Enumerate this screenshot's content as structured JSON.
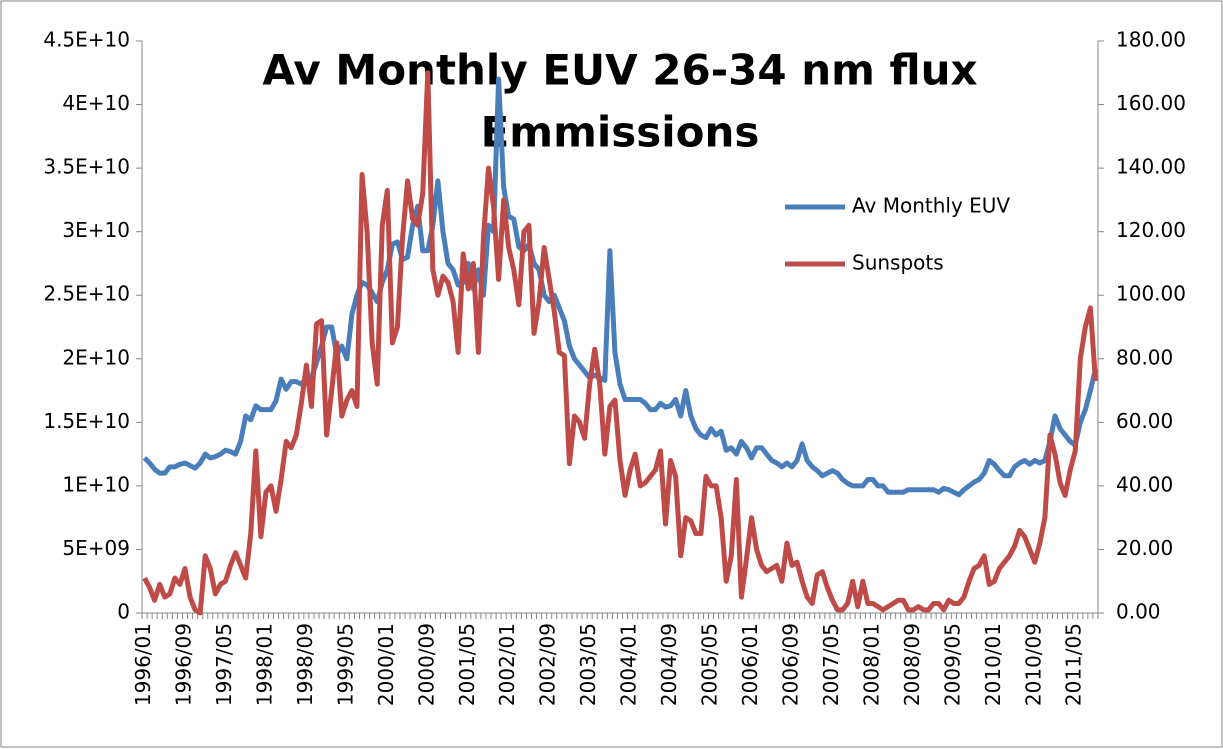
{
  "chart_data": {
    "type": "line",
    "title": [
      "Av Monthly EUV 26-34 nm flux",
      "Emmissions"
    ],
    "categories": [
      "1996/01",
      null,
      null,
      null,
      null,
      null,
      null,
      null,
      "1996/09",
      null,
      null,
      null,
      null,
      null,
      null,
      null,
      "1997/05",
      null,
      null,
      null,
      null,
      null,
      null,
      null,
      "1998/01",
      null,
      null,
      null,
      null,
      null,
      null,
      null,
      "1998/09",
      null,
      null,
      null,
      null,
      null,
      null,
      null,
      "1999/05",
      null,
      null,
      null,
      null,
      null,
      null,
      null,
      "2000/01",
      null,
      null,
      null,
      null,
      null,
      null,
      null,
      "2000/09",
      null,
      null,
      null,
      null,
      null,
      null,
      null,
      "2001/05",
      null,
      null,
      null,
      null,
      null,
      null,
      null,
      "2002/01",
      null,
      null,
      null,
      null,
      null,
      null,
      null,
      "2002/09",
      null,
      null,
      null,
      null,
      null,
      null,
      null,
      "2003/05",
      null,
      null,
      null,
      null,
      null,
      null,
      null,
      "2004/01",
      null,
      null,
      null,
      null,
      null,
      null,
      null,
      "2004/09",
      null,
      null,
      null,
      null,
      null,
      null,
      null,
      "2005/05",
      null,
      null,
      null,
      null,
      null,
      null,
      null,
      "2006/01",
      null,
      null,
      null,
      null,
      null,
      null,
      null,
      "2006/09",
      null,
      null,
      null,
      null,
      null,
      null,
      null,
      "2007/05",
      null,
      null,
      null,
      null,
      null,
      null,
      null,
      "2008/01",
      null,
      null,
      null,
      null,
      null,
      null,
      null,
      "2008/09",
      null,
      null,
      null,
      null,
      null,
      null,
      null,
      "2009/05",
      null,
      null,
      null,
      null,
      null,
      null,
      null,
      "2010/01",
      null,
      null,
      null,
      null,
      null,
      null,
      null,
      "2010/09",
      null,
      null,
      null,
      null,
      null,
      null,
      null,
      "2011/05",
      null,
      null,
      null,
      null
    ],
    "series": [
      {
        "name": "Av Monthly EUV",
        "color": "#4a7ebb",
        "values": [
          12200000000.0,
          11800000000.0,
          11300000000.0,
          11000000000.0,
          11000000000.0,
          11500000000.0,
          11500000000.0,
          11700000000.0,
          11800000000.0,
          11600000000.0,
          11400000000.0,
          11800000000.0,
          12500000000.0,
          12200000000.0,
          12300000000.0,
          12500000000.0,
          12800000000.0,
          12700000000.0,
          12500000000.0,
          13500000000.0,
          15500000000.0,
          15200000000.0,
          16300000000.0,
          16000000000.0,
          16000000000.0,
          16000000000.0,
          16700000000.0,
          18400000000.0,
          17600000000.0,
          18200000000.0,
          18200000000.0,
          18000000000.0,
          18500000000.0,
          18500000000.0,
          19700000000.0,
          21000000000.0,
          22500000000.0,
          22500000000.0,
          20300000000.0,
          21000000000.0,
          20000000000.0,
          23500000000.0,
          25000000000.0,
          26000000000.0,
          25800000000.0,
          25200000000.0,
          24500000000.0,
          26000000000.0,
          27000000000.0,
          29000000000.0,
          29200000000.0,
          27800000000.0,
          28000000000.0,
          30500000000.0,
          32000000000.0,
          28500000000.0,
          28500000000.0,
          30500000000.0,
          34000000000.0,
          30000000000.0,
          27500000000.0,
          27000000000.0,
          25800000000.0,
          26000000000.0,
          27500000000.0,
          25500000000.0,
          27000000000.0,
          25000000000.0,
          30500000000.0,
          30000000000.0,
          42000000000.0,
          33500000000.0,
          31200000000.0,
          31000000000.0,
          28800000000.0,
          28500000000.0,
          29000000000.0,
          27500000000.0,
          27000000000.0,
          25000000000.0,
          24500000000.0,
          25000000000.0,
          24000000000.0,
          23000000000.0,
          21000000000.0,
          20000000000.0,
          19500000000.0,
          19000000000.0,
          18500000000.0,
          18700000000.0,
          18500000000.0,
          18300000000.0,
          28500000000.0,
          20500000000.0,
          18000000000.0,
          16800000000.0,
          16800000000.0,
          16800000000.0,
          16800000000.0,
          16500000000.0,
          16000000000.0,
          16000000000.0,
          16500000000.0,
          16200000000.0,
          16300000000.0,
          16800000000.0,
          15500000000.0,
          17500000000.0,
          15500000000.0,
          14500000000.0,
          14000000000.0,
          13800000000.0,
          14500000000.0,
          14000000000.0,
          14300000000.0,
          12800000000.0,
          13000000000.0,
          12500000000.0,
          13500000000.0,
          13000000000.0,
          12200000000.0,
          13000000000.0,
          13000000000.0,
          12500000000.0,
          12000000000.0,
          11800000000.0,
          11500000000.0,
          11800000000.0,
          11500000000.0,
          12000000000.0,
          13300000000.0,
          12000000000.0,
          11500000000.0,
          11200000000.0,
          10800000000.0,
          11000000000.0,
          11200000000.0,
          11000000000.0,
          10500000000.0,
          10200000000.0,
          10000000000.0,
          10000000000.0,
          10000000000.0,
          10500000000.0,
          10500000000.0,
          10000000000.0,
          10000000000.0,
          9500000000.0,
          9500000000.0,
          9500000000.0,
          9500000000.0,
          9700000000.0,
          9700000000.0,
          9700000000.0,
          9700000000.0,
          9700000000.0,
          9700000000.0,
          9500000000.0,
          9800000000.0,
          9700000000.0,
          9500000000.0,
          9300000000.0,
          9700000000.0,
          10000000000.0,
          10300000000.0,
          10500000000.0,
          11000000000.0,
          12000000000.0,
          11700000000.0,
          11200000000.0,
          10800000000.0,
          10800000000.0,
          11500000000.0,
          11800000000.0,
          12000000000.0,
          11700000000.0,
          12000000000.0,
          11800000000.0,
          12000000000.0,
          13500000000.0,
          15500000000.0,
          14500000000.0,
          14000000000.0,
          13500000000.0,
          13200000000.0,
          15000000000.0,
          16000000000.0,
          17500000000.0,
          19200000000.0
        ]
      },
      {
        "name": "Sunspots",
        "color": "#be4b48",
        "axis": "y2",
        "values": [
          11,
          8,
          4,
          9,
          5,
          6,
          11,
          9,
          14,
          5,
          1,
          0,
          18,
          14,
          6,
          9,
          10,
          15,
          19,
          15,
          11,
          25,
          51,
          24,
          38,
          40,
          32,
          42,
          54,
          52,
          56,
          66,
          78,
          65,
          91,
          92,
          56,
          70,
          85,
          62,
          67,
          70,
          65,
          138,
          120,
          85,
          72,
          122,
          133,
          85,
          90,
          118,
          136,
          124,
          122,
          132,
          170,
          108,
          100,
          106,
          104,
          98,
          82,
          113,
          102,
          110,
          82,
          118,
          140,
          128,
          105,
          130,
          115,
          108,
          97,
          120,
          122,
          88,
          98,
          115,
          105,
          95,
          82,
          81,
          47,
          62,
          60,
          55,
          72,
          83,
          72,
          50,
          65,
          67,
          48,
          37,
          45,
          50,
          40,
          41,
          43,
          45,
          51,
          28,
          48,
          43,
          18,
          30,
          29,
          25,
          25,
          43,
          40,
          40,
          30,
          10,
          18,
          42,
          5,
          17,
          30,
          20,
          15,
          13,
          14,
          15,
          10,
          22,
          15,
          16,
          10,
          5,
          3,
          12,
          13,
          8,
          4,
          1,
          1,
          3,
          10,
          2,
          10,
          3,
          3,
          2,
          1,
          2,
          3,
          4,
          4,
          1,
          1,
          2,
          1,
          1,
          3,
          3,
          1,
          4,
          3,
          3,
          5,
          10,
          14,
          15,
          18,
          9,
          10,
          14,
          16,
          18,
          21,
          26,
          24,
          20,
          16,
          22,
          30,
          56,
          50,
          41,
          37,
          45,
          51,
          80,
          90,
          96,
          73
        ]
      }
    ],
    "ylim": [
      0,
      45000000000
    ],
    "yticks": [
      0,
      {
        "value": 5000000000,
        "label": "5E+09"
      },
      {
        "value": 10000000000,
        "label": "1E+10"
      },
      {
        "value": 15000000000,
        "label": "1.5E+10"
      },
      {
        "value": 20000000000,
        "label": "2E+10"
      },
      {
        "value": 25000000000,
        "label": "2.5E+10"
      },
      {
        "value": 30000000000,
        "label": "3E+10"
      },
      {
        "value": 35000000000,
        "label": "3.5E+10"
      },
      {
        "value": 40000000000,
        "label": "4E+10"
      },
      {
        "value": 45000000000,
        "label": "4.5E+10"
      }
    ],
    "y2lim": [
      0,
      180
    ],
    "y2ticks": [
      {
        "value": 0,
        "label": "0.00"
      },
      {
        "value": 20,
        "label": "20.00"
      },
      {
        "value": 40,
        "label": "40.00"
      },
      {
        "value": 60,
        "label": "60.00"
      },
      {
        "value": 80,
        "label": "80.00"
      },
      {
        "value": 100,
        "label": "100.00"
      },
      {
        "value": 120,
        "label": "120.00"
      },
      {
        "value": 140,
        "label": "140.00"
      },
      {
        "value": 160,
        "label": "160.00"
      },
      {
        "value": 180,
        "label": "180.00"
      }
    ],
    "grid": false,
    "legend": "right"
  }
}
